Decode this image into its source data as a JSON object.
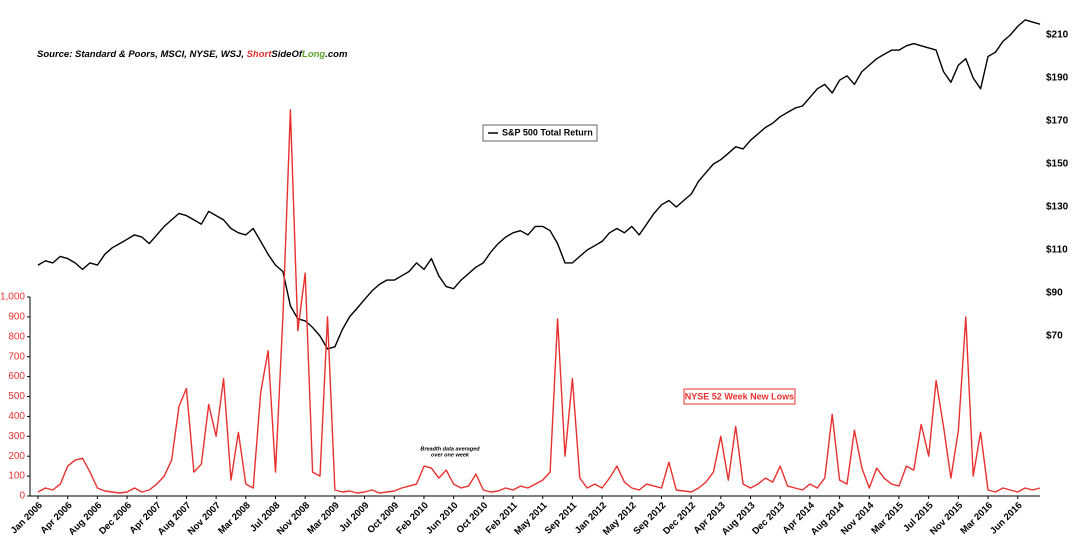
{
  "chart_data": {
    "type": "line",
    "source": "Source: Standard & Poors, MSCI, NYSE, WSJ, ",
    "source_brand": [
      "Short",
      "SideOf",
      "Long",
      ".com"
    ],
    "annotation": [
      "Breadth data averaged",
      "over one week"
    ],
    "categories": [
      "Jan 2006",
      null,
      null,
      null,
      "Apr 2006",
      null,
      null,
      null,
      "Aug 2006",
      null,
      null,
      null,
      "Dec 2006",
      null,
      null,
      null,
      "Apr 2007",
      null,
      null,
      null,
      "Aug 2007",
      null,
      null,
      null,
      "Nov 2007",
      null,
      null,
      null,
      "Mar 2008",
      null,
      null,
      null,
      "Jul 2008",
      null,
      null,
      null,
      "Nov 2008",
      null,
      null,
      null,
      "Mar 2009",
      null,
      null,
      null,
      "Jul 2009",
      null,
      null,
      null,
      "Oct 2009",
      null,
      null,
      null,
      "Feb 2010",
      null,
      null,
      null,
      "Jun 2010",
      null,
      null,
      null,
      "Oct 2010",
      null,
      null,
      null,
      "Feb 2011",
      null,
      null,
      null,
      "May 2011",
      null,
      null,
      null,
      "Sep 2011",
      null,
      null,
      null,
      "Jan 2012",
      null,
      null,
      null,
      "May 2012",
      null,
      null,
      null,
      "Sep 2012",
      null,
      null,
      null,
      "Dec 2012",
      null,
      null,
      null,
      "Apr 2013",
      null,
      null,
      null,
      "Aug 2013",
      null,
      null,
      null,
      "Dec 2013",
      null,
      null,
      null,
      "Apr 2014",
      null,
      null,
      null,
      "Aug 2014",
      null,
      null,
      null,
      "Nov 2014",
      null,
      null,
      null,
      "Mar 2015",
      null,
      null,
      null,
      "Jul 2015",
      null,
      null,
      null,
      "Nov 2015",
      null,
      null,
      null,
      "Mar 2016",
      null,
      null,
      null,
      "Jun 2016",
      null,
      null,
      null
    ],
    "series": [
      {
        "name": "S&P 500 Total Return",
        "color": "#000000",
        "axis": "y2",
        "values": [
          103,
          105,
          104,
          107,
          106,
          104,
          101,
          104,
          103,
          108,
          111,
          113,
          115,
          117,
          116,
          113,
          117,
          121,
          124,
          127,
          126,
          124,
          122,
          128,
          126,
          124,
          120,
          118,
          117,
          120,
          114,
          108,
          103,
          100,
          84,
          78,
          77,
          74,
          70,
          64,
          65,
          73,
          79,
          83,
          87,
          91,
          94,
          96,
          96,
          98,
          100,
          104,
          101,
          106,
          98,
          93,
          92,
          96,
          99,
          102,
          104,
          109,
          113,
          116,
          118,
          119,
          117,
          121,
          121,
          119,
          113,
          104,
          104,
          107,
          110,
          112,
          114,
          118,
          120,
          118,
          121,
          117,
          122,
          127,
          131,
          133,
          130,
          133,
          136,
          142,
          146,
          150,
          152,
          155,
          158,
          157,
          161,
          164,
          167,
          169,
          172,
          174,
          176,
          177,
          181,
          185,
          187,
          183,
          189,
          191,
          187,
          193,
          196,
          199,
          201,
          203,
          203,
          205,
          206,
          205,
          204,
          203,
          193,
          188,
          196,
          199,
          190,
          185,
          200,
          202,
          207,
          210,
          214,
          217,
          216,
          215
        ]
      },
      {
        "name": "NYSE 52 Week New Lows",
        "color": "#e8312f",
        "values": [
          20,
          40,
          30,
          60,
          150,
          180,
          190,
          120,
          40,
          25,
          20,
          15,
          20,
          40,
          20,
          30,
          60,
          100,
          180,
          450,
          540,
          120,
          160,
          460,
          300,
          590,
          80,
          320,
          60,
          40,
          520,
          730,
          120,
          900,
          1940,
          830,
          1120,
          120,
          100,
          900,
          30,
          20,
          25,
          15,
          20,
          30,
          15,
          20,
          25,
          40,
          50,
          60,
          150,
          140,
          90,
          130,
          60,
          40,
          50,
          110,
          30,
          20,
          25,
          40,
          30,
          50,
          40,
          60,
          80,
          120,
          890,
          200,
          590,
          90,
          40,
          60,
          40,
          90,
          150,
          70,
          40,
          30,
          60,
          50,
          40,
          170,
          30,
          25,
          20,
          40,
          70,
          120,
          300,
          80,
          350,
          60,
          40,
          60,
          90,
          70,
          150,
          50,
          40,
          30,
          60,
          40,
          90,
          410,
          80,
          60,
          330,
          140,
          40,
          140,
          90,
          60,
          50,
          150,
          130,
          360,
          200,
          580,
          350,
          90,
          330,
          900,
          100,
          320,
          30,
          20,
          40,
          30,
          20,
          40,
          30,
          40
        ]
      }
    ],
    "ylim": [
      0,
      1000
    ],
    "yticks": [
      0,
      100,
      200,
      300,
      400,
      500,
      600,
      700,
      800,
      900,
      {
        "value": 1000,
        "label": "1,000"
      }
    ],
    "y2lim": [
      70,
      210
    ],
    "y2ticks": [
      {
        "value": 70,
        "label": "$70"
      },
      {
        "value": 90,
        "label": "$90"
      },
      {
        "value": 110,
        "label": "$110"
      },
      {
        "value": 130,
        "label": "$130"
      },
      {
        "value": 150,
        "label": "$150"
      },
      {
        "value": 170,
        "label": "$170"
      },
      {
        "value": 190,
        "label": "$190"
      },
      {
        "value": 210,
        "label": "$210"
      }
    ],
    "y_color": "#e8312f"
  }
}
